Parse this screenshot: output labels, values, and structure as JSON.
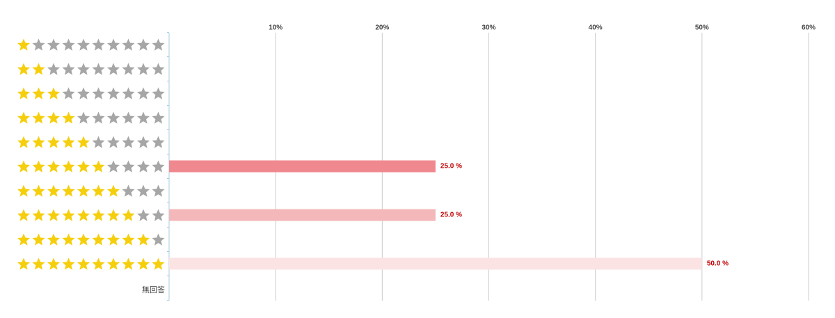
{
  "chart_data": {
    "type": "bar",
    "orientation": "horizontal",
    "categories": [
      null,
      null,
      null,
      null,
      null,
      null,
      null,
      null,
      null,
      null,
      "無回答"
    ],
    "values": [
      0,
      0,
      0,
      0,
      0,
      25,
      0,
      25,
      0,
      50,
      0
    ],
    "value_labels": [
      null,
      null,
      null,
      null,
      null,
      "25.0 %",
      null,
      "25.0 %",
      null,
      "50.0 %",
      null
    ],
    "colors": [
      null,
      null,
      null,
      null,
      null,
      "#f0888f",
      null,
      "#f4b8ba",
      null,
      "#fbe3e4",
      null
    ],
    "xlim": [
      0,
      60
    ],
    "xticks": [
      {
        "value": 10,
        "label": "10%"
      },
      {
        "value": 20,
        "label": "20%"
      },
      {
        "value": 30,
        "label": "30%"
      },
      {
        "value": 40,
        "label": "40%"
      },
      {
        "value": 50,
        "label": "50%"
      },
      {
        "value": 60,
        "label": "60%"
      }
    ],
    "grid": true
  }
}
